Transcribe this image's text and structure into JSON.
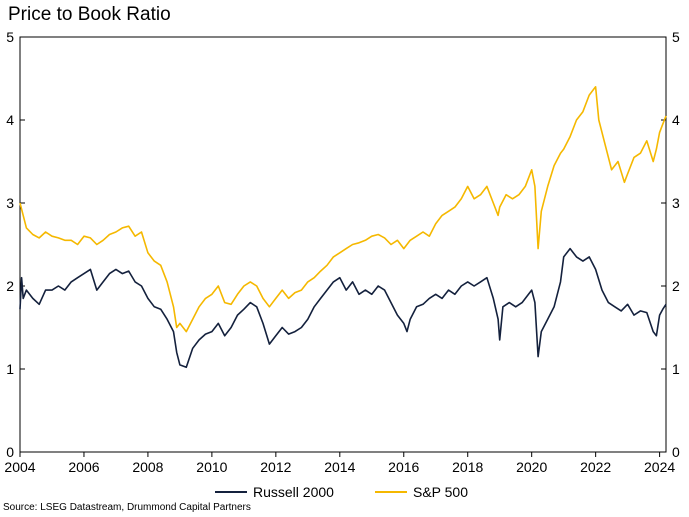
{
  "chart_data": {
    "type": "line",
    "title": "Price to Book Ratio",
    "source": "Source: LSEG Datastream, Drummond Capital Partners",
    "xlim": [
      2004,
      2024.2
    ],
    "ylim": [
      0,
      5
    ],
    "x_ticks": [
      2004,
      2006,
      2008,
      2010,
      2012,
      2014,
      2016,
      2018,
      2020,
      2022,
      2024
    ],
    "y_ticks": [
      0,
      1,
      2,
      3,
      4,
      5
    ],
    "grid": false,
    "legend": "bottom",
    "series": [
      {
        "name": "Russell 2000",
        "color": "#14213d",
        "points": [
          [
            2004.0,
            1.72
          ],
          [
            2004.05,
            2.1
          ],
          [
            2004.1,
            1.85
          ],
          [
            2004.2,
            1.95
          ],
          [
            2004.4,
            1.85
          ],
          [
            2004.6,
            1.78
          ],
          [
            2004.8,
            1.95
          ],
          [
            2005.0,
            1.95
          ],
          [
            2005.2,
            2.0
          ],
          [
            2005.4,
            1.95
          ],
          [
            2005.6,
            2.05
          ],
          [
            2005.8,
            2.1
          ],
          [
            2006.0,
            2.15
          ],
          [
            2006.2,
            2.2
          ],
          [
            2006.4,
            1.95
          ],
          [
            2006.6,
            2.05
          ],
          [
            2006.8,
            2.15
          ],
          [
            2007.0,
            2.2
          ],
          [
            2007.2,
            2.15
          ],
          [
            2007.4,
            2.18
          ],
          [
            2007.6,
            2.05
          ],
          [
            2007.8,
            2.0
          ],
          [
            2008.0,
            1.85
          ],
          [
            2008.2,
            1.75
          ],
          [
            2008.4,
            1.72
          ],
          [
            2008.6,
            1.6
          ],
          [
            2008.8,
            1.45
          ],
          [
            2008.9,
            1.2
          ],
          [
            2009.0,
            1.05
          ],
          [
            2009.2,
            1.02
          ],
          [
            2009.4,
            1.25
          ],
          [
            2009.6,
            1.35
          ],
          [
            2009.8,
            1.42
          ],
          [
            2010.0,
            1.45
          ],
          [
            2010.2,
            1.55
          ],
          [
            2010.4,
            1.4
          ],
          [
            2010.6,
            1.5
          ],
          [
            2010.8,
            1.65
          ],
          [
            2011.0,
            1.72
          ],
          [
            2011.2,
            1.8
          ],
          [
            2011.4,
            1.75
          ],
          [
            2011.6,
            1.55
          ],
          [
            2011.8,
            1.3
          ],
          [
            2012.0,
            1.4
          ],
          [
            2012.2,
            1.5
          ],
          [
            2012.4,
            1.42
          ],
          [
            2012.6,
            1.45
          ],
          [
            2012.8,
            1.5
          ],
          [
            2013.0,
            1.6
          ],
          [
            2013.2,
            1.75
          ],
          [
            2013.4,
            1.85
          ],
          [
            2013.6,
            1.95
          ],
          [
            2013.8,
            2.05
          ],
          [
            2014.0,
            2.1
          ],
          [
            2014.2,
            1.95
          ],
          [
            2014.4,
            2.05
          ],
          [
            2014.6,
            1.9
          ],
          [
            2014.8,
            1.95
          ],
          [
            2015.0,
            1.9
          ],
          [
            2015.2,
            2.0
          ],
          [
            2015.4,
            1.95
          ],
          [
            2015.6,
            1.8
          ],
          [
            2015.8,
            1.65
          ],
          [
            2016.0,
            1.55
          ],
          [
            2016.1,
            1.45
          ],
          [
            2016.2,
            1.6
          ],
          [
            2016.4,
            1.75
          ],
          [
            2016.6,
            1.78
          ],
          [
            2016.8,
            1.85
          ],
          [
            2017.0,
            1.9
          ],
          [
            2017.2,
            1.85
          ],
          [
            2017.4,
            1.95
          ],
          [
            2017.6,
            1.9
          ],
          [
            2017.8,
            2.0
          ],
          [
            2018.0,
            2.05
          ],
          [
            2018.2,
            2.0
          ],
          [
            2018.4,
            2.05
          ],
          [
            2018.6,
            2.1
          ],
          [
            2018.8,
            1.85
          ],
          [
            2018.95,
            1.6
          ],
          [
            2019.0,
            1.35
          ],
          [
            2019.1,
            1.75
          ],
          [
            2019.3,
            1.8
          ],
          [
            2019.5,
            1.75
          ],
          [
            2019.7,
            1.8
          ],
          [
            2019.9,
            1.9
          ],
          [
            2020.0,
            1.95
          ],
          [
            2020.1,
            1.8
          ],
          [
            2020.2,
            1.15
          ],
          [
            2020.3,
            1.45
          ],
          [
            2020.5,
            1.6
          ],
          [
            2020.7,
            1.75
          ],
          [
            2020.9,
            2.05
          ],
          [
            2021.0,
            2.35
          ],
          [
            2021.2,
            2.45
          ],
          [
            2021.4,
            2.35
          ],
          [
            2021.6,
            2.3
          ],
          [
            2021.8,
            2.35
          ],
          [
            2022.0,
            2.2
          ],
          [
            2022.2,
            1.95
          ],
          [
            2022.4,
            1.8
          ],
          [
            2022.6,
            1.75
          ],
          [
            2022.8,
            1.7
          ],
          [
            2023.0,
            1.78
          ],
          [
            2023.2,
            1.65
          ],
          [
            2023.4,
            1.7
          ],
          [
            2023.6,
            1.68
          ],
          [
            2023.8,
            1.45
          ],
          [
            2023.9,
            1.4
          ],
          [
            2024.0,
            1.65
          ],
          [
            2024.1,
            1.72
          ],
          [
            2024.2,
            1.78
          ]
        ]
      },
      {
        "name": "S&P 500",
        "color": "#f5b800",
        "points": [
          [
            2004.0,
            3.0
          ],
          [
            2004.1,
            2.85
          ],
          [
            2004.2,
            2.7
          ],
          [
            2004.4,
            2.62
          ],
          [
            2004.6,
            2.58
          ],
          [
            2004.8,
            2.65
          ],
          [
            2005.0,
            2.6
          ],
          [
            2005.2,
            2.58
          ],
          [
            2005.4,
            2.55
          ],
          [
            2005.6,
            2.55
          ],
          [
            2005.8,
            2.5
          ],
          [
            2006.0,
            2.6
          ],
          [
            2006.2,
            2.58
          ],
          [
            2006.4,
            2.5
          ],
          [
            2006.6,
            2.55
          ],
          [
            2006.8,
            2.62
          ],
          [
            2007.0,
            2.65
          ],
          [
            2007.2,
            2.7
          ],
          [
            2007.4,
            2.72
          ],
          [
            2007.6,
            2.6
          ],
          [
            2007.8,
            2.65
          ],
          [
            2008.0,
            2.4
          ],
          [
            2008.2,
            2.3
          ],
          [
            2008.4,
            2.25
          ],
          [
            2008.6,
            2.05
          ],
          [
            2008.8,
            1.75
          ],
          [
            2008.9,
            1.5
          ],
          [
            2009.0,
            1.55
          ],
          [
            2009.2,
            1.45
          ],
          [
            2009.4,
            1.6
          ],
          [
            2009.6,
            1.75
          ],
          [
            2009.8,
            1.85
          ],
          [
            2010.0,
            1.9
          ],
          [
            2010.2,
            2.0
          ],
          [
            2010.4,
            1.8
          ],
          [
            2010.6,
            1.78
          ],
          [
            2010.8,
            1.9
          ],
          [
            2011.0,
            2.0
          ],
          [
            2011.2,
            2.05
          ],
          [
            2011.4,
            2.0
          ],
          [
            2011.6,
            1.85
          ],
          [
            2011.8,
            1.75
          ],
          [
            2012.0,
            1.85
          ],
          [
            2012.2,
            1.95
          ],
          [
            2012.4,
            1.85
          ],
          [
            2012.6,
            1.92
          ],
          [
            2012.8,
            1.95
          ],
          [
            2013.0,
            2.05
          ],
          [
            2013.2,
            2.1
          ],
          [
            2013.4,
            2.18
          ],
          [
            2013.6,
            2.25
          ],
          [
            2013.8,
            2.35
          ],
          [
            2014.0,
            2.4
          ],
          [
            2014.2,
            2.45
          ],
          [
            2014.4,
            2.5
          ],
          [
            2014.6,
            2.52
          ],
          [
            2014.8,
            2.55
          ],
          [
            2015.0,
            2.6
          ],
          [
            2015.2,
            2.62
          ],
          [
            2015.4,
            2.58
          ],
          [
            2015.6,
            2.5
          ],
          [
            2015.8,
            2.55
          ],
          [
            2016.0,
            2.45
          ],
          [
            2016.2,
            2.55
          ],
          [
            2016.4,
            2.6
          ],
          [
            2016.6,
            2.65
          ],
          [
            2016.8,
            2.6
          ],
          [
            2017.0,
            2.75
          ],
          [
            2017.2,
            2.85
          ],
          [
            2017.4,
            2.9
          ],
          [
            2017.6,
            2.95
          ],
          [
            2017.8,
            3.05
          ],
          [
            2018.0,
            3.2
          ],
          [
            2018.2,
            3.05
          ],
          [
            2018.4,
            3.1
          ],
          [
            2018.6,
            3.2
          ],
          [
            2018.8,
            3.0
          ],
          [
            2018.95,
            2.85
          ],
          [
            2019.0,
            2.95
          ],
          [
            2019.2,
            3.1
          ],
          [
            2019.4,
            3.05
          ],
          [
            2019.6,
            3.1
          ],
          [
            2019.8,
            3.2
          ],
          [
            2020.0,
            3.4
          ],
          [
            2020.1,
            3.2
          ],
          [
            2020.2,
            2.45
          ],
          [
            2020.3,
            2.9
          ],
          [
            2020.5,
            3.2
          ],
          [
            2020.7,
            3.45
          ],
          [
            2020.9,
            3.6
          ],
          [
            2021.0,
            3.65
          ],
          [
            2021.2,
            3.8
          ],
          [
            2021.4,
            4.0
          ],
          [
            2021.6,
            4.1
          ],
          [
            2021.8,
            4.3
          ],
          [
            2022.0,
            4.4
          ],
          [
            2022.1,
            4.0
          ],
          [
            2022.3,
            3.7
          ],
          [
            2022.5,
            3.4
          ],
          [
            2022.7,
            3.5
          ],
          [
            2022.9,
            3.25
          ],
          [
            2023.0,
            3.35
          ],
          [
            2023.2,
            3.55
          ],
          [
            2023.4,
            3.6
          ],
          [
            2023.6,
            3.75
          ],
          [
            2023.8,
            3.5
          ],
          [
            2023.9,
            3.65
          ],
          [
            2024.0,
            3.85
          ],
          [
            2024.1,
            3.95
          ],
          [
            2024.2,
            4.05
          ]
        ]
      }
    ]
  }
}
